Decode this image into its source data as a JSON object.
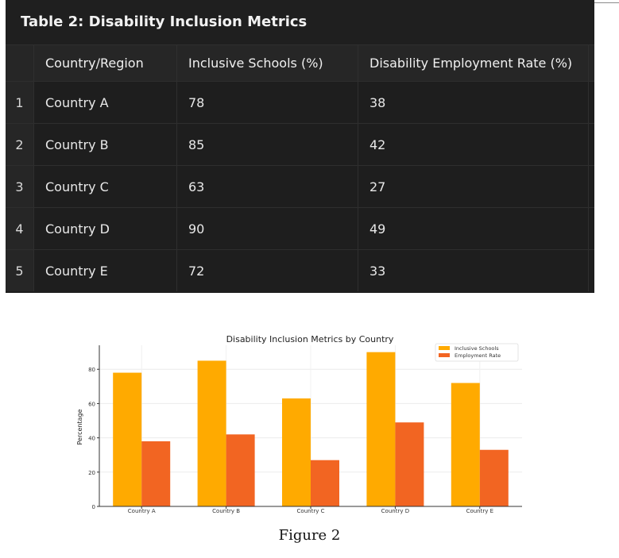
{
  "table": {
    "title": "Table 2: Disability Inclusion Metrics",
    "headers": [
      "",
      "Country/Region",
      "Inclusive Schools (%)",
      "Disability Employment Rate (%)"
    ],
    "rows": [
      [
        "1",
        "Country A",
        "78",
        "38"
      ],
      [
        "2",
        "Country B",
        "85",
        "42"
      ],
      [
        "3",
        "Country C",
        "63",
        "27"
      ],
      [
        "4",
        "Country D",
        "90",
        "49"
      ],
      [
        "5",
        "Country E",
        "72",
        "33"
      ]
    ]
  },
  "chart_data": {
    "type": "bar",
    "title": "Disability Inclusion Metrics by Country",
    "xlabel": "",
    "ylabel": "Percentage",
    "categories": [
      "Country A",
      "Country B",
      "Country C",
      "Country D",
      "Country E"
    ],
    "series": [
      {
        "name": "Inclusive Schools",
        "values": [
          78,
          85,
          63,
          90,
          72
        ],
        "color": "#FFAA00"
      },
      {
        "name": "Employment Rate",
        "values": [
          38,
          42,
          27,
          49,
          33
        ],
        "color": "#F26522"
      }
    ],
    "yticks": [
      0,
      20,
      40,
      60,
      80
    ],
    "ylim": [
      0,
      94
    ],
    "legend": "top-right",
    "grid": true
  },
  "caption": "Figure 2"
}
